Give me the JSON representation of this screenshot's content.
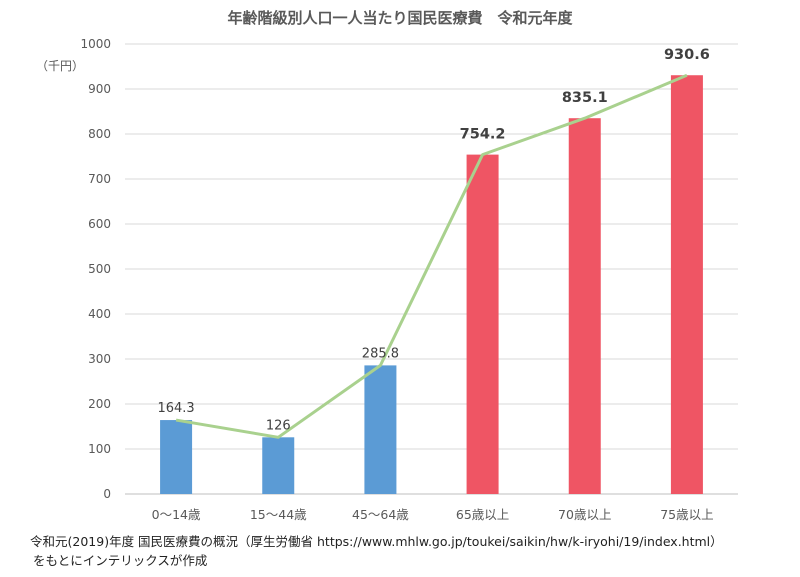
{
  "chart_data": {
    "type": "bar",
    "title": "年齢階級別人口一人当たり国民医療費　令和元年度",
    "unit_label": "（千円）",
    "categories": [
      "0〜14歳",
      "15〜44歳",
      "45〜64歳",
      "65歳以上",
      "70歳以上",
      "75歳以上"
    ],
    "values": [
      164.3,
      126,
      285.8,
      754.2,
      835.1,
      930.6
    ],
    "value_labels": [
      "164.3",
      "126",
      "285.8",
      "754.2",
      "835.1",
      "930.6"
    ],
    "bar_colors": [
      "#5b9bd5",
      "#5b9bd5",
      "#5b9bd5",
      "#ef5564",
      "#ef5564",
      "#ef5564"
    ],
    "line_color": "#a9d18e",
    "line_values": [
      164.3,
      126,
      285.8,
      754.2,
      835.1,
      930.6
    ],
    "ylim": [
      0,
      1000
    ],
    "yticks": [
      0,
      100,
      200,
      300,
      400,
      500,
      600,
      700,
      800,
      900,
      1000
    ],
    "grid": true
  },
  "footer": {
    "line1": "令和元(2019)年度 国民医療費の概況（厚生労働省 https://www.mhlw.go.jp/toukei/saikin/hw/k-iryohi/19/index.html）",
    "line2": "をもとにインテリックスが作成"
  }
}
